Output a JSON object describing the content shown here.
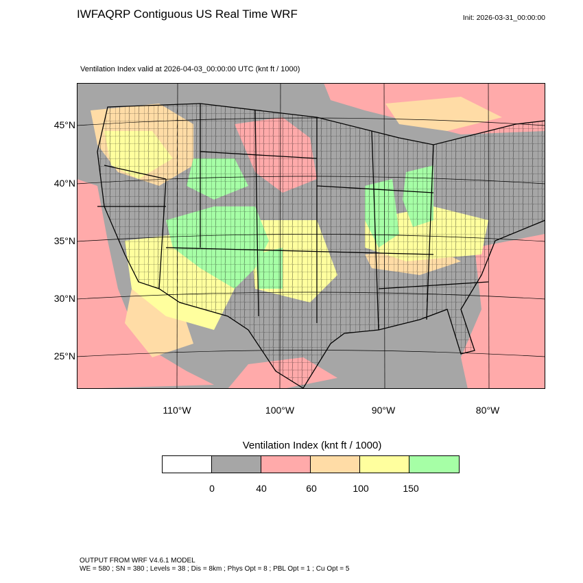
{
  "header": {
    "title": "IWFAQRP Contiguous US Real Time WRF",
    "init": "Init: 2026-03-31_00:00:00"
  },
  "map": {
    "subtitle": "Ventilation Index valid at 2026-04-03_00:00:00 UTC   (knt ft / 1000)",
    "lat_labels": [
      "45°N",
      "40°N",
      "35°N",
      "30°N",
      "25°N"
    ],
    "lon_labels": [
      "110°W",
      "100°W",
      "90°W",
      "80°W"
    ],
    "colors": {
      "background_low": "#a6a6a6",
      "class_40_60": "#ffaaaa",
      "class_60_100": "#ffdca6",
      "class_100_150": "#ffff9e",
      "class_150_plus": "#a6ffa6",
      "boundaries": "#000000"
    }
  },
  "colorbar": {
    "title": "Ventilation Index  (knt ft / 1000)",
    "colors": [
      "#ffffff",
      "#a6a6a6",
      "#ffaaaa",
      "#ffdca6",
      "#ffff9e",
      "#a6ffa6"
    ],
    "ticks": [
      "0",
      "40",
      "60",
      "100",
      "150"
    ]
  },
  "footer": {
    "line1": "OUTPUT FROM WRF V4.6.1 MODEL",
    "line2": "WE = 580 ; SN = 380 ; Levels = 38 ; Dis = 8km ; Phys Opt = 8 ; PBL Opt = 1 ; Cu Opt = 5"
  }
}
